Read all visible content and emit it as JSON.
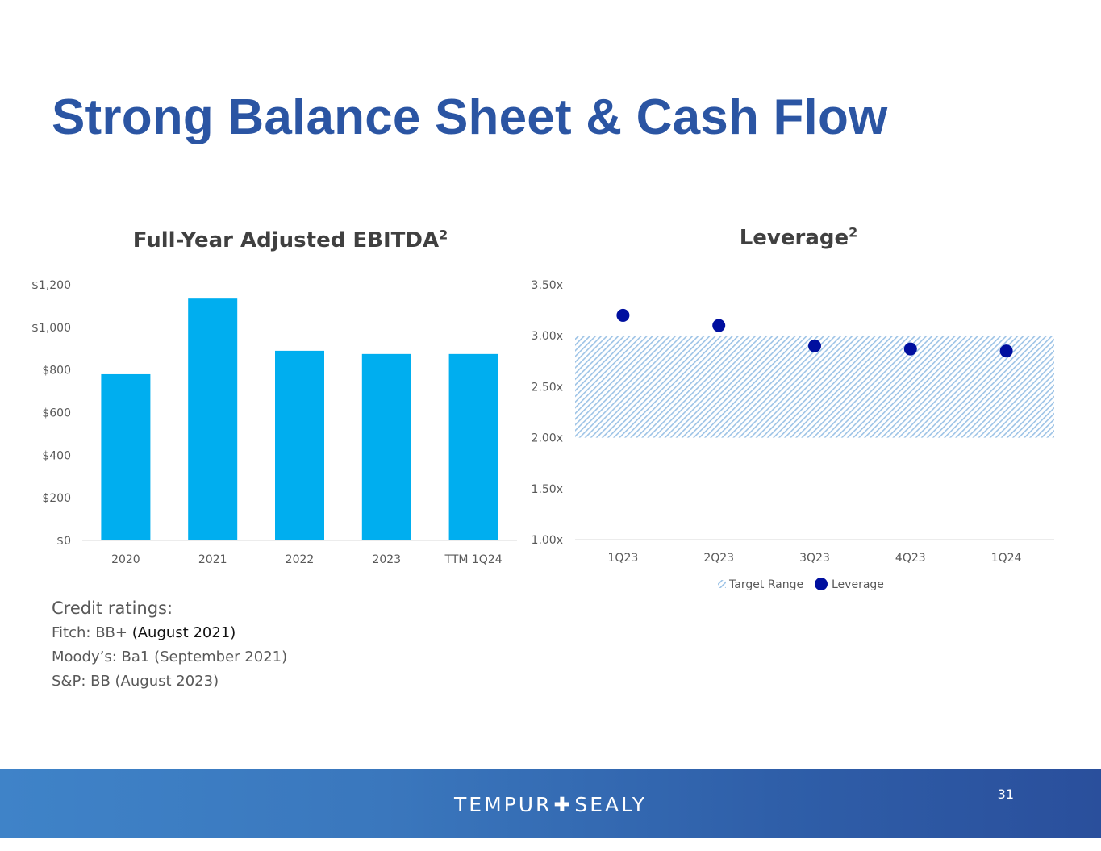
{
  "slide": {
    "title": "Strong Balance Sheet & Cash Flow"
  },
  "charts": {
    "ebitda": {
      "title": "Full-Year Adjusted EBITDA",
      "superscript": "2"
    },
    "leverage": {
      "title": "Leverage",
      "superscript": "2"
    }
  },
  "chart_data": [
    {
      "type": "bar",
      "title": "Full-Year Adjusted EBITDA2",
      "categories": [
        "2020",
        "2021",
        "2022",
        "2023",
        "TTM 1Q24"
      ],
      "values": [
        780,
        1135,
        890,
        875,
        875
      ],
      "ylim": [
        0,
        1200
      ],
      "yticks": [
        0,
        200,
        400,
        600,
        800,
        1000,
        1200
      ],
      "ytick_labels": [
        "$0",
        "$200",
        "$400",
        "$600",
        "$800",
        "$1,000",
        "$1,200"
      ],
      "xlabel": "",
      "ylabel": "",
      "color": "#00AEEF",
      "grid": false
    },
    {
      "type": "scatter",
      "title": "Leverage2",
      "categories": [
        "1Q23",
        "2Q23",
        "3Q23",
        "4Q23",
        "1Q24"
      ],
      "series": [
        {
          "name": "Leverage",
          "values": [
            3.2,
            3.1,
            2.9,
            2.87,
            2.85
          ],
          "color": "#000F9F"
        }
      ],
      "bands": [
        {
          "name": "Target Range",
          "from": 2.0,
          "to": 3.0,
          "color": "#9DC3E6",
          "pattern": "diagonal-hatch"
        }
      ],
      "ylim": [
        1.0,
        3.5
      ],
      "yticks": [
        1.0,
        1.5,
        2.0,
        2.5,
        3.0,
        3.5
      ],
      "ytick_labels": [
        "1.00x",
        "1.50x",
        "2.00x",
        "2.50x",
        "3.00x",
        "3.50x"
      ],
      "legend": {
        "position": "bottom",
        "entries": [
          "Target Range",
          "Leverage"
        ]
      },
      "xlabel": "",
      "ylabel": "",
      "grid": false
    }
  ],
  "credit": {
    "heading": "Credit ratings:",
    "fitch_prefix": "Fitch: BB+ ",
    "fitch_date": "(August 2021)",
    "moodys": "Moody’s: Ba1 (September 2021)",
    "sp": "S&P: BB (August 2023)"
  },
  "footer": {
    "brand_left": "TEMPUR",
    "brand_plus": "✚",
    "brand_right": "SEALY",
    "page_number": "31",
    "background_color": "#2F5FA9"
  }
}
